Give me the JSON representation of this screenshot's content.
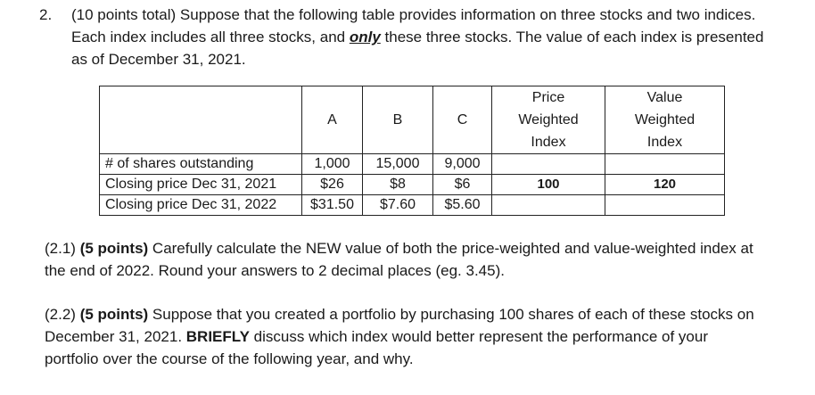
{
  "question": {
    "number": "2.",
    "intro": "(10 points total) Suppose that the following table provides information on three stocks and two indices. Each index includes all three stocks, and ",
    "emphasis": "only",
    "rest": " these three stocks. The value of each index is presented as of December 31, 2021."
  },
  "table": {
    "columns": {
      "a": "A",
      "b": "B",
      "c": "C",
      "price_weighted": [
        "Price",
        "Weighted",
        "Index"
      ],
      "value_weighted": [
        "Value",
        "Weighted",
        "Index"
      ]
    },
    "rows": [
      {
        "label": "# of shares outstanding",
        "a": "1,000",
        "b": "15,000",
        "c": "9,000",
        "pw": "",
        "vw": ""
      },
      {
        "label": "Closing price Dec 31, 2021",
        "a": "$26",
        "b": "$8",
        "c": "$6",
        "pw": "100",
        "vw": "120"
      },
      {
        "label": "Closing price Dec 31, 2022",
        "a": "$31.50",
        "b": "$7.60",
        "c": "$5.60",
        "pw": "",
        "vw": ""
      }
    ]
  },
  "part1": {
    "prefix": "(2.1) ",
    "points": "(5 points)",
    "text": " Carefully calculate the NEW value of both the price-weighted and value-weighted index at the end of 2022. Round your answers to 2 decimal places (eg. 3.45)."
  },
  "part2": {
    "prefix": "(2.2) ",
    "points": "(5 points)",
    "text_a": " Suppose that you created a portfolio by purchasing 100 shares of each of these stocks on December 31, 2021. ",
    "briefly": "BRIEFLY",
    "text_b": " discuss which index would better represent the performance of your portfolio over the course of the following year, and why."
  }
}
